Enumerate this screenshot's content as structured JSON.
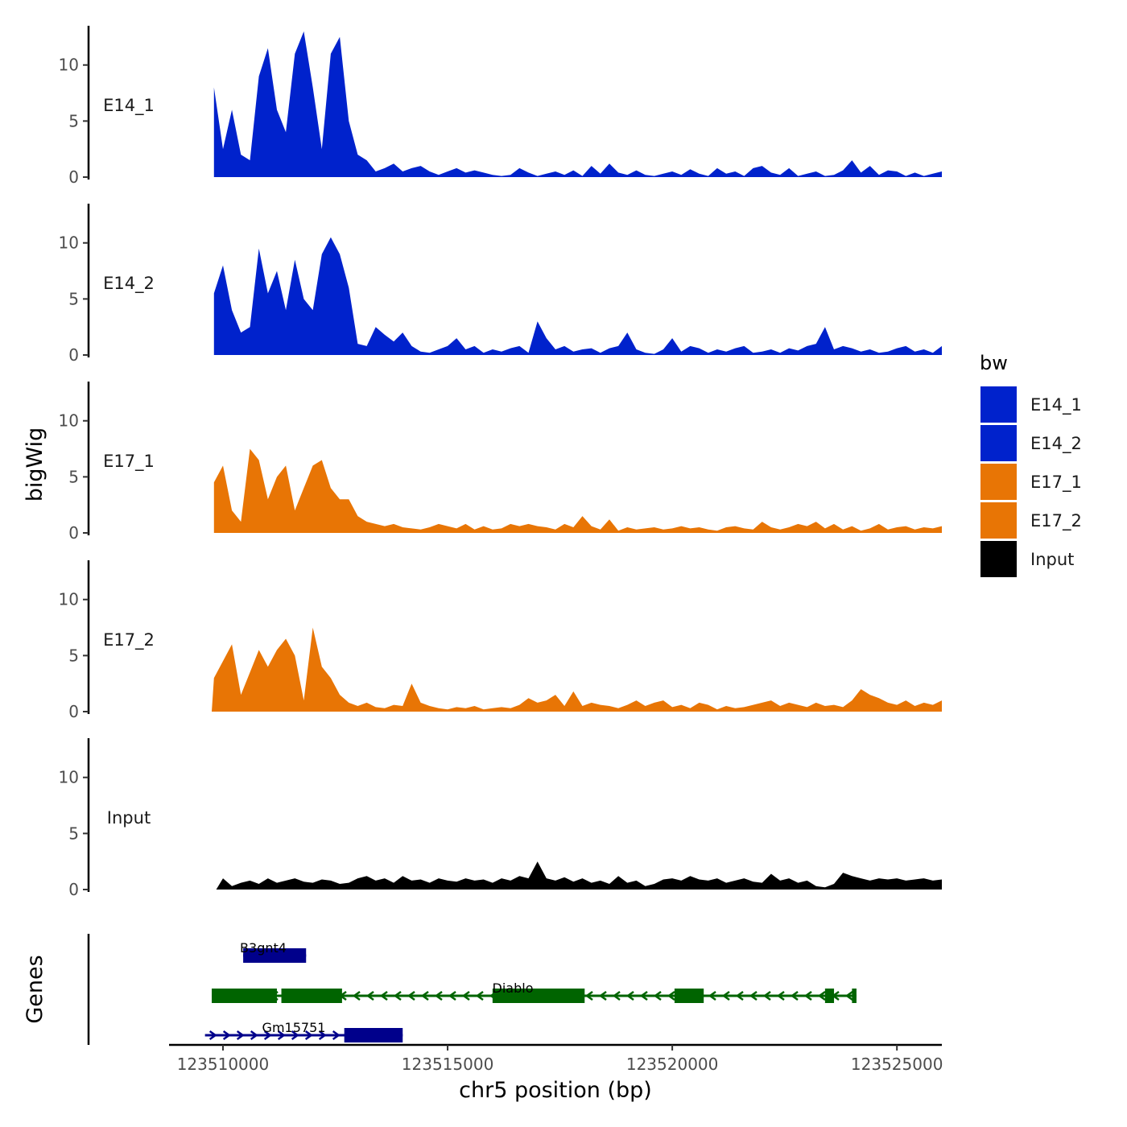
{
  "chart_data": {
    "type": "area",
    "ylabel": "bigWig",
    "genes_label": "Genes",
    "xlabel": "chr5 position (bp)",
    "xlim": [
      123508800,
      123526000
    ],
    "xticks": [
      {
        "value": 123510000,
        "label": "123510000"
      },
      {
        "value": 123515000,
        "label": "123515000"
      },
      {
        "value": 123520000,
        "label": "123520000"
      },
      {
        "value": 123525000,
        "label": "123525000"
      }
    ],
    "ylim": [
      0,
      13.5
    ],
    "yticks": [
      {
        "value": 0,
        "label": "0"
      },
      {
        "value": 5,
        "label": "5"
      },
      {
        "value": 10,
        "label": "10"
      }
    ],
    "legend": {
      "title": "bw",
      "position": "right",
      "entries": [
        {
          "label": "E14_1",
          "color": "#0022cc"
        },
        {
          "label": "E14_2",
          "color": "#0022cc"
        },
        {
          "label": "E17_1",
          "color": "#e87505"
        },
        {
          "label": "E17_2",
          "color": "#e87505"
        },
        {
          "label": "Input",
          "color": "#000000"
        }
      ]
    },
    "x": [
      123508800,
      123509000,
      123509200,
      123509400,
      123509600,
      123509800,
      123510000,
      123510200,
      123510400,
      123510600,
      123510800,
      123511000,
      123511200,
      123511400,
      123511600,
      123511800,
      123512000,
      123512200,
      123512400,
      123512600,
      123512800,
      123513000,
      123513200,
      123513400,
      123513600,
      123513800,
      123514000,
      123514200,
      123514400,
      123514600,
      123514800,
      123515000,
      123515200,
      123515400,
      123515600,
      123515800,
      123516000,
      123516200,
      123516400,
      123516600,
      123516800,
      123517000,
      123517200,
      123517400,
      123517600,
      123517800,
      123518000,
      123518200,
      123518400,
      123518600,
      123518800,
      123519000,
      123519200,
      123519400,
      123519600,
      123519800,
      123520000,
      123520200,
      123520400,
      123520600,
      123520800,
      123521000,
      123521200,
      123521400,
      123521600,
      123521800,
      123522000,
      123522200,
      123522400,
      123522600,
      123522800,
      123523000,
      123523200,
      123523400,
      123523600,
      123523800,
      123524000,
      123524200,
      123524400,
      123524600,
      123524800,
      123525000,
      123525200,
      123525400,
      123525600,
      123525800,
      123526000
    ],
    "series": [
      {
        "name": "E14_1",
        "color": "#0022cc",
        "start": 123509800,
        "end": 123526000,
        "values": [
          0,
          0,
          0,
          0,
          0,
          8,
          2.5,
          6,
          2,
          1.5,
          9,
          11.5,
          6,
          4,
          11,
          13,
          8,
          2.5,
          11,
          12.5,
          5,
          2,
          1.5,
          0.5,
          0.8,
          1.2,
          0.5,
          0.8,
          1,
          0.5,
          0.2,
          0.5,
          0.8,
          0.4,
          0.6,
          0.4,
          0.2,
          0.1,
          0.2,
          0.8,
          0.4,
          0.1,
          0.3,
          0.5,
          0.2,
          0.6,
          0.1,
          1,
          0.3,
          1.2,
          0.4,
          0.2,
          0.6,
          0.2,
          0.1,
          0.3,
          0.5,
          0.2,
          0.7,
          0.3,
          0.1,
          0.8,
          0.3,
          0.5,
          0.1,
          0.8,
          1,
          0.4,
          0.2,
          0.8,
          0.1,
          0.3,
          0.5,
          0.1,
          0.2,
          0.6,
          1.5,
          0.4,
          1,
          0.2,
          0.6,
          0.5,
          0.1,
          0.4,
          0.1,
          0.3,
          0.5
        ]
      },
      {
        "name": "E14_2",
        "color": "#0022cc",
        "start": 123509800,
        "end": 123526000,
        "values": [
          0,
          0,
          0,
          0,
          0,
          5.5,
          8,
          4,
          2,
          2.5,
          9.5,
          5.5,
          7.5,
          4,
          8.5,
          5,
          4,
          9,
          10.5,
          9,
          6,
          1,
          0.8,
          2.5,
          1.8,
          1.2,
          2,
          0.8,
          0.3,
          0.2,
          0.5,
          0.8,
          1.5,
          0.5,
          0.8,
          0.2,
          0.5,
          0.3,
          0.6,
          0.8,
          0.2,
          3,
          1.5,
          0.5,
          0.8,
          0.3,
          0.5,
          0.6,
          0.2,
          0.6,
          0.8,
          2,
          0.5,
          0.2,
          0.1,
          0.5,
          1.5,
          0.3,
          0.8,
          0.6,
          0.2,
          0.5,
          0.3,
          0.6,
          0.8,
          0.2,
          0.3,
          0.5,
          0.2,
          0.6,
          0.4,
          0.8,
          1,
          2.5,
          0.5,
          0.8,
          0.6,
          0.3,
          0.5,
          0.2,
          0.3,
          0.6,
          0.8,
          0.3,
          0.5,
          0.2,
          0.8
        ]
      },
      {
        "name": "E17_1",
        "color": "#e87505",
        "start": 123509800,
        "end": 123526000,
        "values": [
          0,
          0,
          0,
          0,
          0,
          4.5,
          6,
          2,
          1,
          7.5,
          6.5,
          3,
          5,
          6,
          2,
          4,
          6,
          6.5,
          4,
          3,
          3,
          1.5,
          1,
          0.8,
          0.6,
          0.8,
          0.5,
          0.4,
          0.3,
          0.5,
          0.8,
          0.6,
          0.4,
          0.8,
          0.3,
          0.6,
          0.3,
          0.4,
          0.8,
          0.6,
          0.8,
          0.6,
          0.5,
          0.3,
          0.8,
          0.5,
          1.5,
          0.6,
          0.3,
          1.2,
          0.2,
          0.5,
          0.3,
          0.4,
          0.5,
          0.3,
          0.4,
          0.6,
          0.4,
          0.5,
          0.3,
          0.2,
          0.5,
          0.6,
          0.4,
          0.3,
          1,
          0.5,
          0.3,
          0.5,
          0.8,
          0.6,
          1,
          0.4,
          0.8,
          0.3,
          0.6,
          0.2,
          0.4,
          0.8,
          0.3,
          0.5,
          0.6,
          0.3,
          0.5,
          0.4,
          0.6
        ]
      },
      {
        "name": "E17_2",
        "color": "#e87505",
        "start": 123509750,
        "end": 123526000,
        "values": [
          0,
          0,
          0,
          0,
          0,
          3,
          4.5,
          6,
          1.5,
          3.5,
          5.5,
          4,
          5.5,
          6.5,
          5,
          1,
          7.5,
          4,
          3,
          1.5,
          0.8,
          0.5,
          0.8,
          0.4,
          0.3,
          0.6,
          0.5,
          2.5,
          0.8,
          0.5,
          0.3,
          0.2,
          0.4,
          0.3,
          0.5,
          0.2,
          0.3,
          0.4,
          0.3,
          0.6,
          1.2,
          0.8,
          1,
          1.5,
          0.5,
          1.8,
          0.5,
          0.8,
          0.6,
          0.5,
          0.3,
          0.6,
          1,
          0.5,
          0.8,
          1,
          0.4,
          0.6,
          0.3,
          0.8,
          0.6,
          0.2,
          0.5,
          0.3,
          0.4,
          0.6,
          0.8,
          1,
          0.5,
          0.8,
          0.6,
          0.4,
          0.8,
          0.5,
          0.6,
          0.4,
          1,
          2,
          1.5,
          1.2,
          0.8,
          0.6,
          1,
          0.5,
          0.8,
          0.6,
          1
        ]
      },
      {
        "name": "Input",
        "color": "#000000",
        "start": 123509850,
        "end": 123526000,
        "values": [
          0,
          0,
          0,
          0,
          0,
          0.5,
          1,
          0.3,
          0.6,
          0.8,
          0.5,
          1,
          0.6,
          0.8,
          1,
          0.7,
          0.6,
          0.9,
          0.8,
          0.5,
          0.6,
          1,
          1.2,
          0.8,
          1,
          0.6,
          1.2,
          0.8,
          0.9,
          0.6,
          1,
          0.8,
          0.7,
          1,
          0.8,
          0.9,
          0.6,
          1,
          0.8,
          1.2,
          1,
          2.5,
          1,
          0.8,
          1.1,
          0.7,
          1,
          0.6,
          0.8,
          0.5,
          1.2,
          0.6,
          0.8,
          0.3,
          0.5,
          0.9,
          1,
          0.8,
          1.2,
          0.9,
          0.8,
          1,
          0.6,
          0.8,
          1,
          0.7,
          0.6,
          1.4,
          0.8,
          1,
          0.6,
          0.8,
          0.3,
          0.2,
          0.5,
          1.5,
          1.2,
          1,
          0.8,
          1,
          0.9,
          1,
          0.8,
          0.9,
          1,
          0.8,
          0.9
        ]
      }
    ],
    "genes": [
      {
        "name": "B3gnt4",
        "color": "#00008b",
        "strand": "+",
        "start": 123510450,
        "end": 123511850,
        "row": 0,
        "exons": [
          [
            123510450,
            123511850
          ]
        ]
      },
      {
        "name": "Diablo",
        "color": "#006400",
        "strand": "-",
        "start": 123509750,
        "end": 123524100,
        "row": 1,
        "exons": [
          [
            123509750,
            123511200
          ],
          [
            123511300,
            123512650
          ],
          [
            123516000,
            123518050
          ],
          [
            123520050,
            123520700
          ],
          [
            123523400,
            123523600
          ],
          [
            123524000,
            123524100
          ]
        ]
      },
      {
        "name": "Gm15751",
        "color": "#00008b",
        "strand": "+",
        "start": 123509600,
        "end": 123514000,
        "row": 2,
        "exons": [
          [
            123512700,
            123514000
          ]
        ]
      }
    ]
  }
}
